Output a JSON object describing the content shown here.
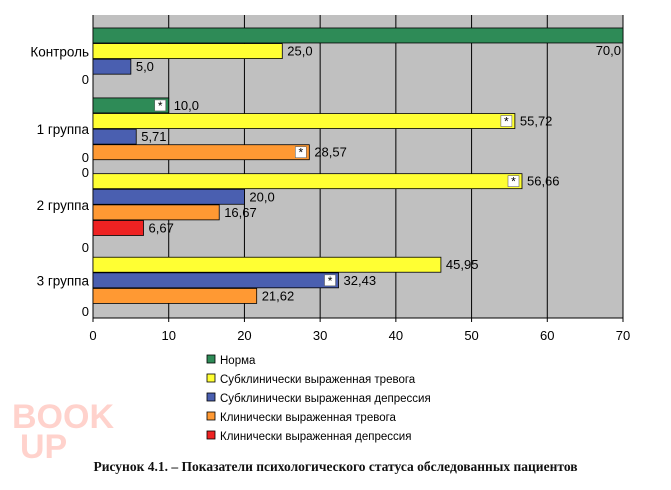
{
  "chart_data": {
    "type": "bar",
    "orientation": "horizontal",
    "categories": [
      "Контроль",
      "1 группа",
      "2 группа",
      "3 группа"
    ],
    "xlim": [
      0,
      70
    ],
    "xticks": [
      "0",
      "10",
      "20",
      "30",
      "40",
      "50",
      "60",
      "70"
    ],
    "grid": true,
    "legend_position": "bottom",
    "series": [
      {
        "name": "Норма",
        "color": "#2e8b57",
        "values": [
          70.0,
          10.0,
          null,
          null
        ],
        "labels": [
          "70,0",
          "10,0",
          "",
          ""
        ]
      },
      {
        "name": "Субклинически выраженная тревога",
        "color": "#ffff33",
        "values": [
          25.0,
          55.72,
          56.66,
          45.95
        ],
        "labels": [
          "25,0",
          "55,72",
          "56,66",
          "45,95"
        ]
      },
      {
        "name": "Субклинически выраженная депрессия",
        "color": "#4a5fb0",
        "values": [
          5.0,
          5.71,
          20.0,
          32.43
        ],
        "labels": [
          "5,0",
          "5,71",
          "20,0",
          "32,43"
        ]
      },
      {
        "name": "Клинически выраженная тревога",
        "color": "#ff9933",
        "values": [
          null,
          28.57,
          16.67,
          21.62
        ],
        "labels": [
          "",
          "28,57",
          "16,67",
          "21,62"
        ]
      },
      {
        "name": "Клинически выраженная депрессия",
        "color": "#ee2222",
        "values": [
          null,
          null,
          6.67,
          null
        ],
        "labels": [
          "",
          "",
          "6,67",
          ""
        ]
      }
    ],
    "zero_labels": [
      "0",
      "0",
      "0",
      "0",
      "0",
      "0"
    ],
    "significance_marker": "*",
    "significance_marks": [
      [
        1,
        0
      ],
      [
        1,
        1
      ],
      [
        1,
        3
      ],
      [
        2,
        1
      ],
      [
        3,
        2
      ]
    ]
  },
  "caption": "Рисунок 4.1. – Показатели психологического статуса обследованных пациентов",
  "watermark": {
    "line1": "BOOK",
    "line2": "UP"
  }
}
